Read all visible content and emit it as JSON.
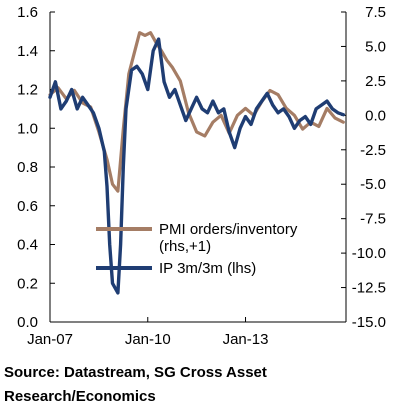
{
  "chart_data": {
    "type": "line",
    "title": "",
    "xlabel": "",
    "ylabel_left": "",
    "ylabel_right": "",
    "x_ticks": [
      "Jan-07",
      "Jan-10",
      "Jan-13"
    ],
    "y_left": {
      "min": 0.0,
      "max": 1.6,
      "ticks": [
        "0.0",
        "0.2",
        "0.4",
        "0.6",
        "0.8",
        "1.0",
        "1.2",
        "1.4",
        "1.6"
      ]
    },
    "y_right": {
      "min": -15.0,
      "max": 7.5,
      "ticks": [
        "7.5",
        "5.0",
        "2.5",
        "0.0",
        "-2.5",
        "-5.0",
        "-7.5",
        "-10.0",
        "-12.5",
        "-15.0"
      ]
    },
    "x_range": [
      "2007-01",
      "2016-02"
    ],
    "grid": false,
    "legend_placement": "center-left",
    "series": [
      {
        "name": "PMI orders/inventory",
        "name_line2": "(rhs,+1)",
        "axis": "right",
        "color": "#a57d65",
        "points": [
          [
            "2007-01",
            1.5
          ],
          [
            "2007-04",
            2.0
          ],
          [
            "2007-07",
            1.2
          ],
          [
            "2007-10",
            1.8
          ],
          [
            "2008-01",
            0.9
          ],
          [
            "2008-04",
            0.6
          ],
          [
            "2008-07",
            -1.2
          ],
          [
            "2008-10",
            -3.2
          ],
          [
            "2008-12",
            -5.0
          ],
          [
            "2009-02",
            -5.5
          ],
          [
            "2009-04",
            -1.0
          ],
          [
            "2009-06",
            3.0
          ],
          [
            "2009-08",
            4.5
          ],
          [
            "2009-10",
            6.0
          ],
          [
            "2009-12",
            5.8
          ],
          [
            "2010-02",
            6.0
          ],
          [
            "2010-04",
            5.3
          ],
          [
            "2010-06",
            4.7
          ],
          [
            "2010-08",
            4.0
          ],
          [
            "2010-10",
            3.5
          ],
          [
            "2011-01",
            2.5
          ],
          [
            "2011-04",
            0.2
          ],
          [
            "2011-07",
            -1.2
          ],
          [
            "2011-10",
            -1.5
          ],
          [
            "2012-01",
            -0.5
          ],
          [
            "2012-04",
            0.0
          ],
          [
            "2012-07",
            -1.3
          ],
          [
            "2012-10",
            0.0
          ],
          [
            "2013-01",
            0.5
          ],
          [
            "2013-04",
            0.0
          ],
          [
            "2013-07",
            1.0
          ],
          [
            "2013-10",
            1.8
          ],
          [
            "2014-01",
            1.5
          ],
          [
            "2014-04",
            0.5
          ],
          [
            "2014-07",
            0.0
          ],
          [
            "2014-10",
            -1.0
          ],
          [
            "2015-01",
            -0.5
          ],
          [
            "2015-04",
            -0.8
          ],
          [
            "2015-07",
            0.5
          ],
          [
            "2015-10",
            -0.2
          ],
          [
            "2016-01",
            -0.5
          ]
        ]
      },
      {
        "name": "IP 3m/3m (lhs)",
        "axis": "left",
        "color": "#1f3d73",
        "points": [
          [
            "2007-01",
            1.16
          ],
          [
            "2007-03",
            1.24
          ],
          [
            "2007-05",
            1.1
          ],
          [
            "2007-07",
            1.14
          ],
          [
            "2007-09",
            1.2
          ],
          [
            "2007-11",
            1.1
          ],
          [
            "2008-01",
            1.16
          ],
          [
            "2008-03",
            1.12
          ],
          [
            "2008-05",
            1.08
          ],
          [
            "2008-07",
            1.0
          ],
          [
            "2008-09",
            0.88
          ],
          [
            "2008-10",
            0.7
          ],
          [
            "2008-11",
            0.4
          ],
          [
            "2008-12",
            0.2
          ],
          [
            "2009-02",
            0.15
          ],
          [
            "2009-03",
            0.4
          ],
          [
            "2009-04",
            0.8
          ],
          [
            "2009-05",
            1.1
          ],
          [
            "2009-07",
            1.3
          ],
          [
            "2009-09",
            1.32
          ],
          [
            "2009-11",
            1.28
          ],
          [
            "2010-01",
            1.2
          ],
          [
            "2010-03",
            1.4
          ],
          [
            "2010-05",
            1.46
          ],
          [
            "2010-07",
            1.24
          ],
          [
            "2010-09",
            1.16
          ],
          [
            "2010-11",
            1.2
          ],
          [
            "2011-01",
            1.12
          ],
          [
            "2011-03",
            1.04
          ],
          [
            "2011-05",
            1.1
          ],
          [
            "2011-07",
            1.16
          ],
          [
            "2011-09",
            1.1
          ],
          [
            "2011-11",
            1.08
          ],
          [
            "2012-01",
            1.14
          ],
          [
            "2012-03",
            1.08
          ],
          [
            "2012-05",
            1.1
          ],
          [
            "2012-07",
            0.98
          ],
          [
            "2012-09",
            0.9
          ],
          [
            "2012-11",
            1.0
          ],
          [
            "2013-01",
            1.06
          ],
          [
            "2013-03",
            1.02
          ],
          [
            "2013-05",
            1.1
          ],
          [
            "2013-07",
            1.14
          ],
          [
            "2013-09",
            1.18
          ],
          [
            "2013-11",
            1.12
          ],
          [
            "2014-01",
            1.08
          ],
          [
            "2014-03",
            1.1
          ],
          [
            "2014-05",
            1.06
          ],
          [
            "2014-07",
            1.0
          ],
          [
            "2014-09",
            1.04
          ],
          [
            "2014-11",
            1.06
          ],
          [
            "2015-01",
            1.02
          ],
          [
            "2015-03",
            1.1
          ],
          [
            "2015-05",
            1.12
          ],
          [
            "2015-07",
            1.14
          ],
          [
            "2015-09",
            1.1
          ],
          [
            "2015-11",
            1.08
          ],
          [
            "2016-01",
            1.07
          ]
        ]
      }
    ]
  },
  "source_note": "Source: Datastream, SG Cross Asset Research/Economics"
}
